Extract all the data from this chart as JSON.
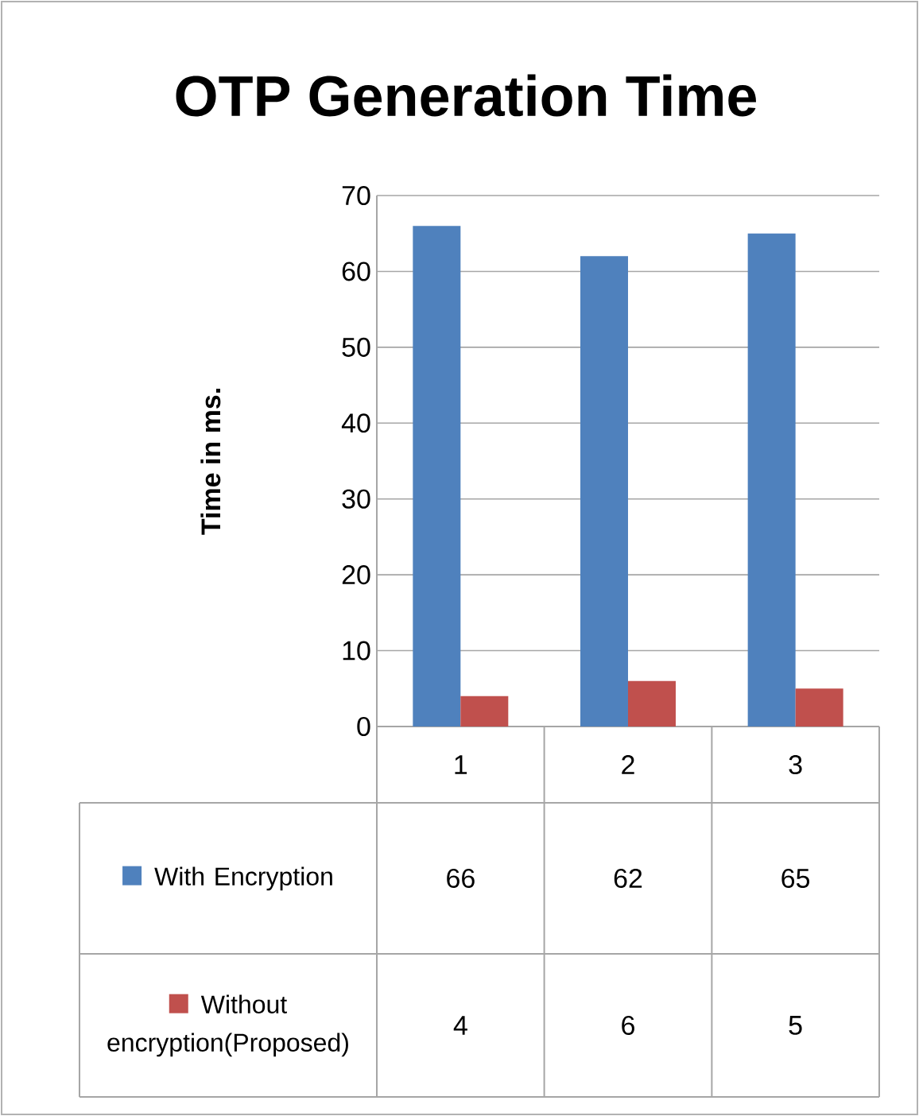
{
  "chart_data": {
    "type": "bar",
    "title": "OTP Generation Time",
    "ylabel": "Time in ms.",
    "categories": [
      "1",
      "2",
      "3"
    ],
    "series": [
      {
        "name": "With Encryption",
        "color": "#4f81bd",
        "values": [
          66,
          62,
          65
        ]
      },
      {
        "name": "Without encryption(Proposed)",
        "color": "#c0504d",
        "values": [
          4,
          6,
          5
        ]
      }
    ],
    "ylim": [
      0,
      70
    ],
    "yticks": [
      0,
      10,
      20,
      30,
      40,
      50,
      60,
      70
    ],
    "grid": "y",
    "legend": "bottom",
    "data_labels": true
  }
}
